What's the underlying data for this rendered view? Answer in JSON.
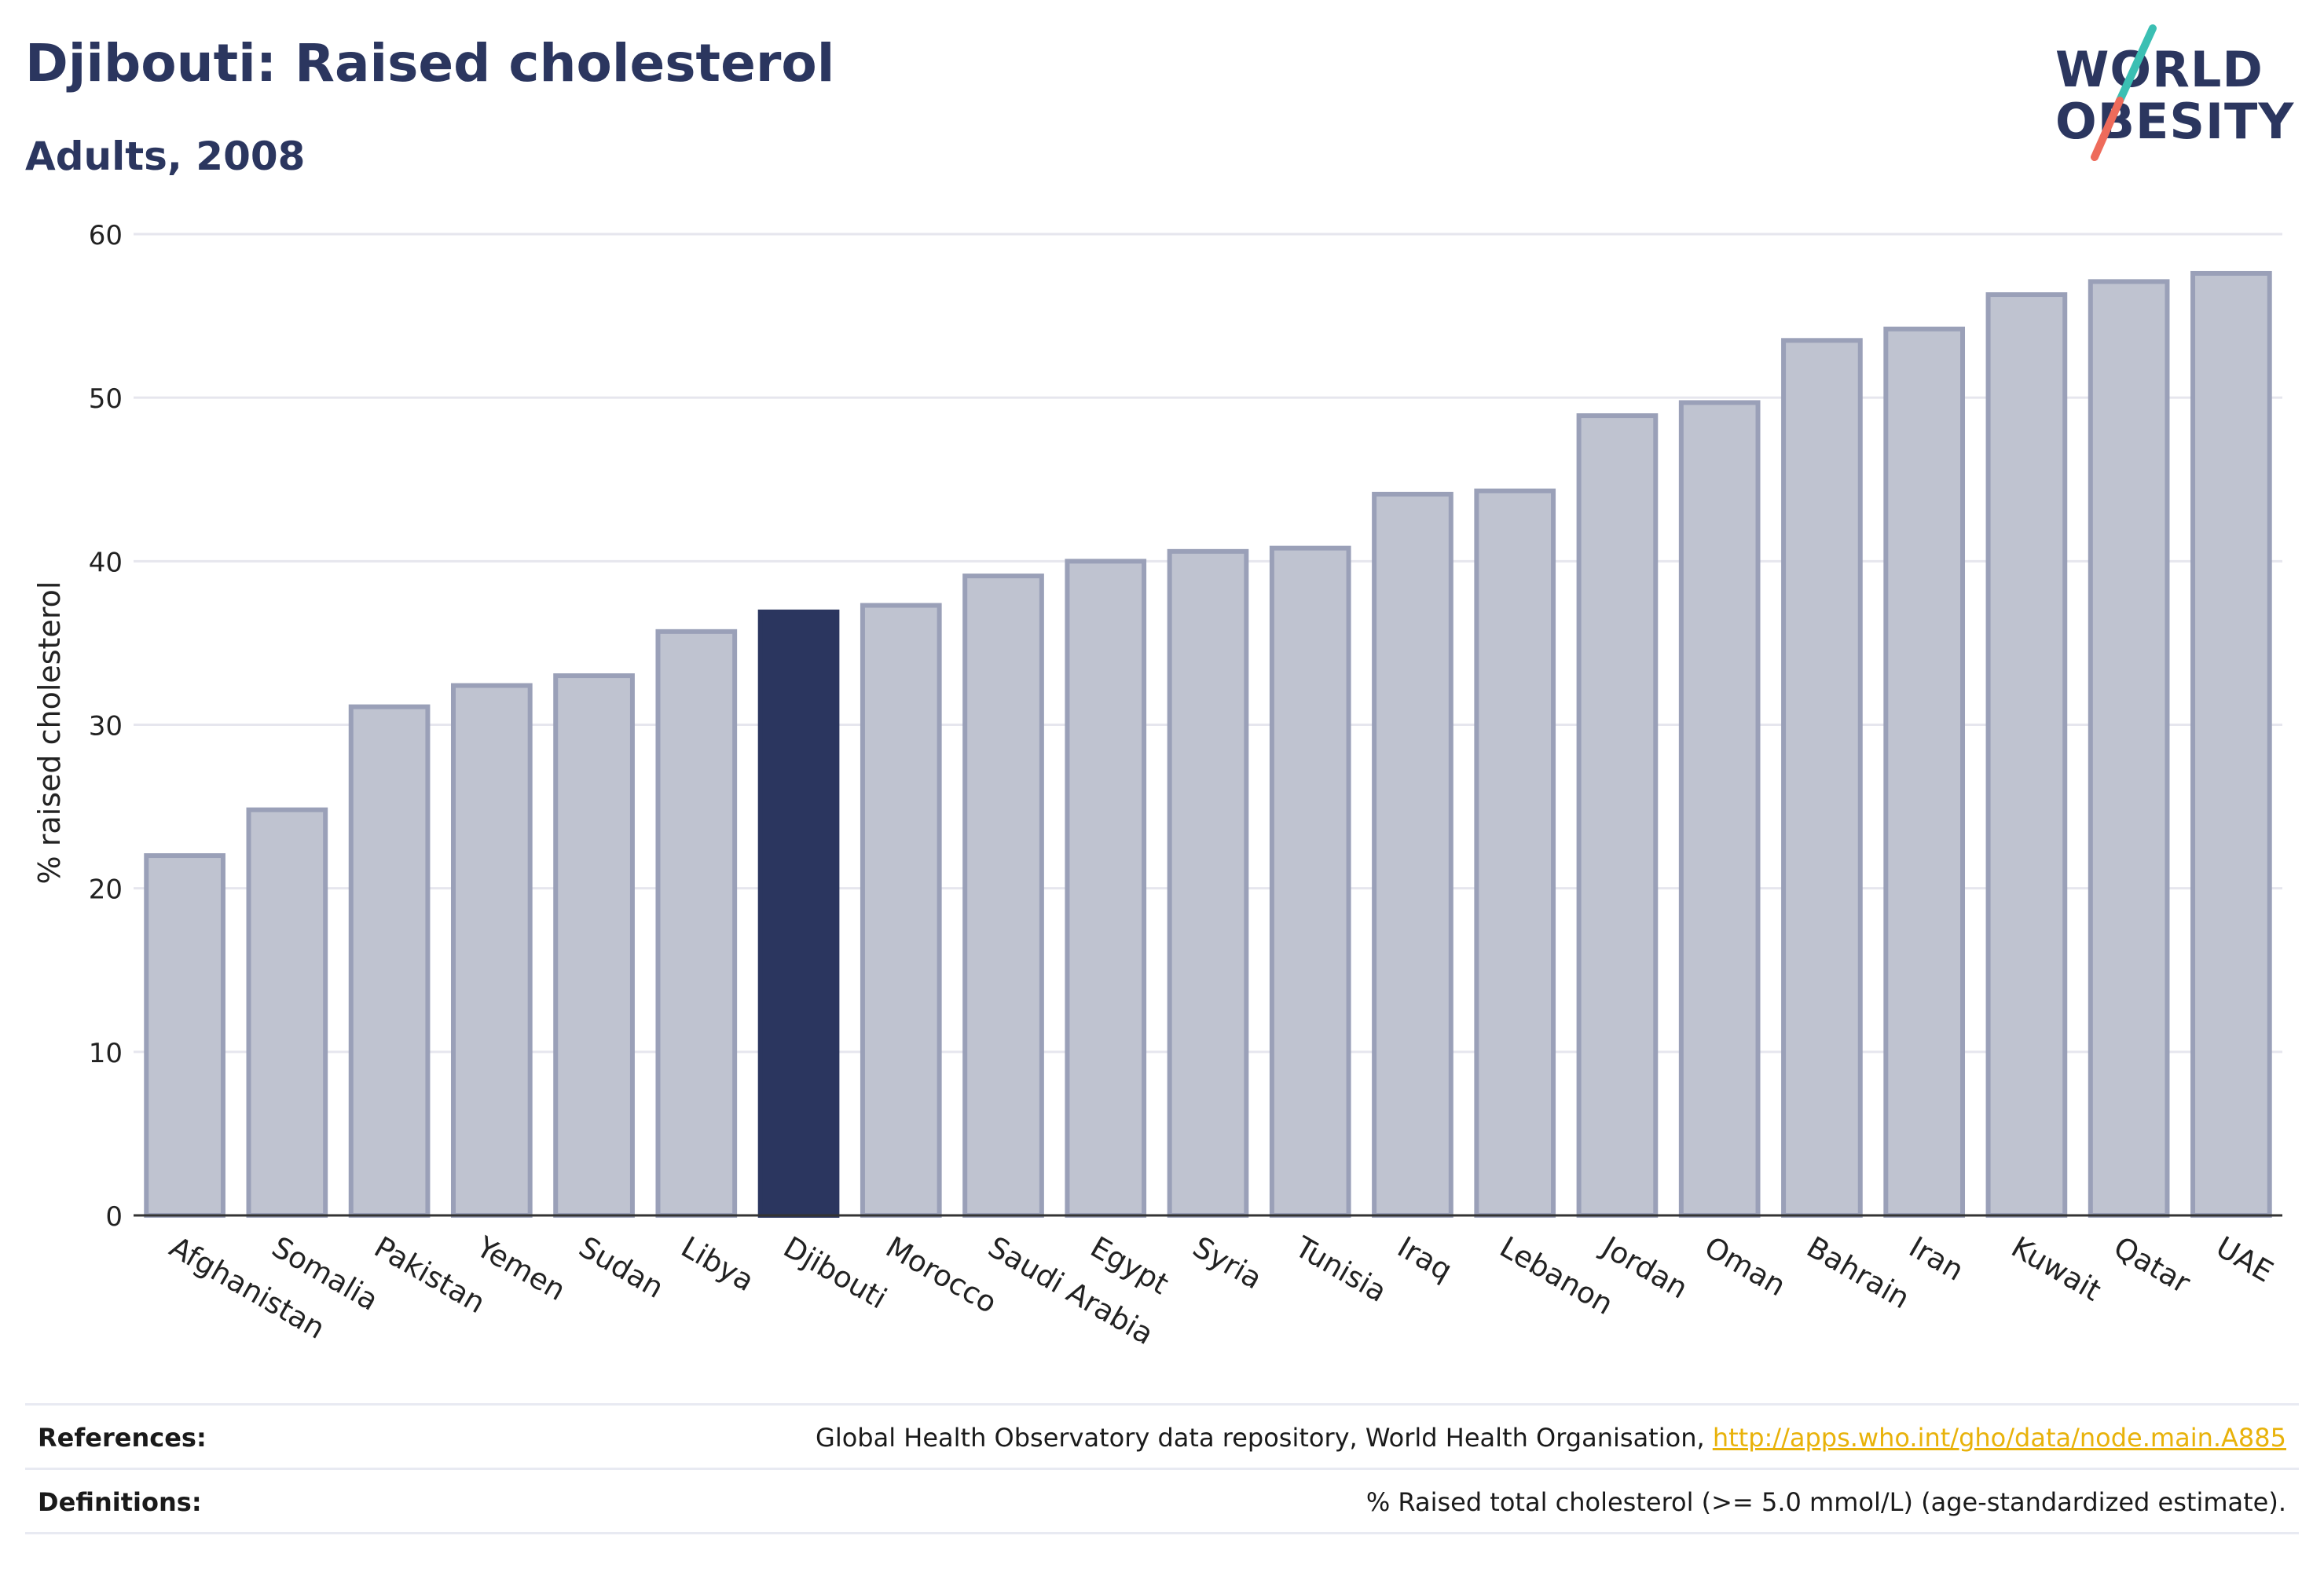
{
  "header": {
    "title": "Djibouti: Raised cholesterol",
    "subtitle": "Adults, 2008"
  },
  "logo": {
    "line1": "WORLD",
    "line2": "OBESITY"
  },
  "colors": {
    "highlight": "#2b365f",
    "bar_fill": "#bfc3d0",
    "bar_edge": "#9aa0b8",
    "grid": "#e6e6ee",
    "logo_teal": "#3bbfb3",
    "logo_coral": "#ee6b5b",
    "link": "#e8b20a"
  },
  "chart_data": {
    "type": "bar",
    "categories": [
      "Afghanistan",
      "Somalia",
      "Pakistan",
      "Yemen",
      "Sudan",
      "Libya",
      "Djibouti",
      "Morocco",
      "Saudi Arabia",
      "Egypt",
      "Syria",
      "Tunisia",
      "Iraq",
      "Lebanon",
      "Jordan",
      "Oman",
      "Bahrain",
      "Iran",
      "Kuwait",
      "Qatar",
      "UAE"
    ],
    "values": [
      22.0,
      24.8,
      31.1,
      32.4,
      33.0,
      35.7,
      36.9,
      37.3,
      39.1,
      40.0,
      40.6,
      40.8,
      44.1,
      44.3,
      48.9,
      49.7,
      53.5,
      54.2,
      56.3,
      57.1,
      57.6
    ],
    "highlight": "Djibouti",
    "ylabel": "% raised cholesterol",
    "xlabel": "",
    "ylim": [
      0,
      60
    ],
    "yticks": [
      0,
      10,
      20,
      30,
      40,
      50,
      60
    ],
    "grid": true
  },
  "footer": {
    "references_label": "References:",
    "references_text": "Global Health Observatory data repository, World Health Organisation, ",
    "references_link": "http://apps.who.int/gho/data/node.main.A885",
    "definitions_label": "Definitions:",
    "definitions_text": "% Raised total cholesterol (>= 5.0 mmol/L) (age-standardized estimate)."
  }
}
